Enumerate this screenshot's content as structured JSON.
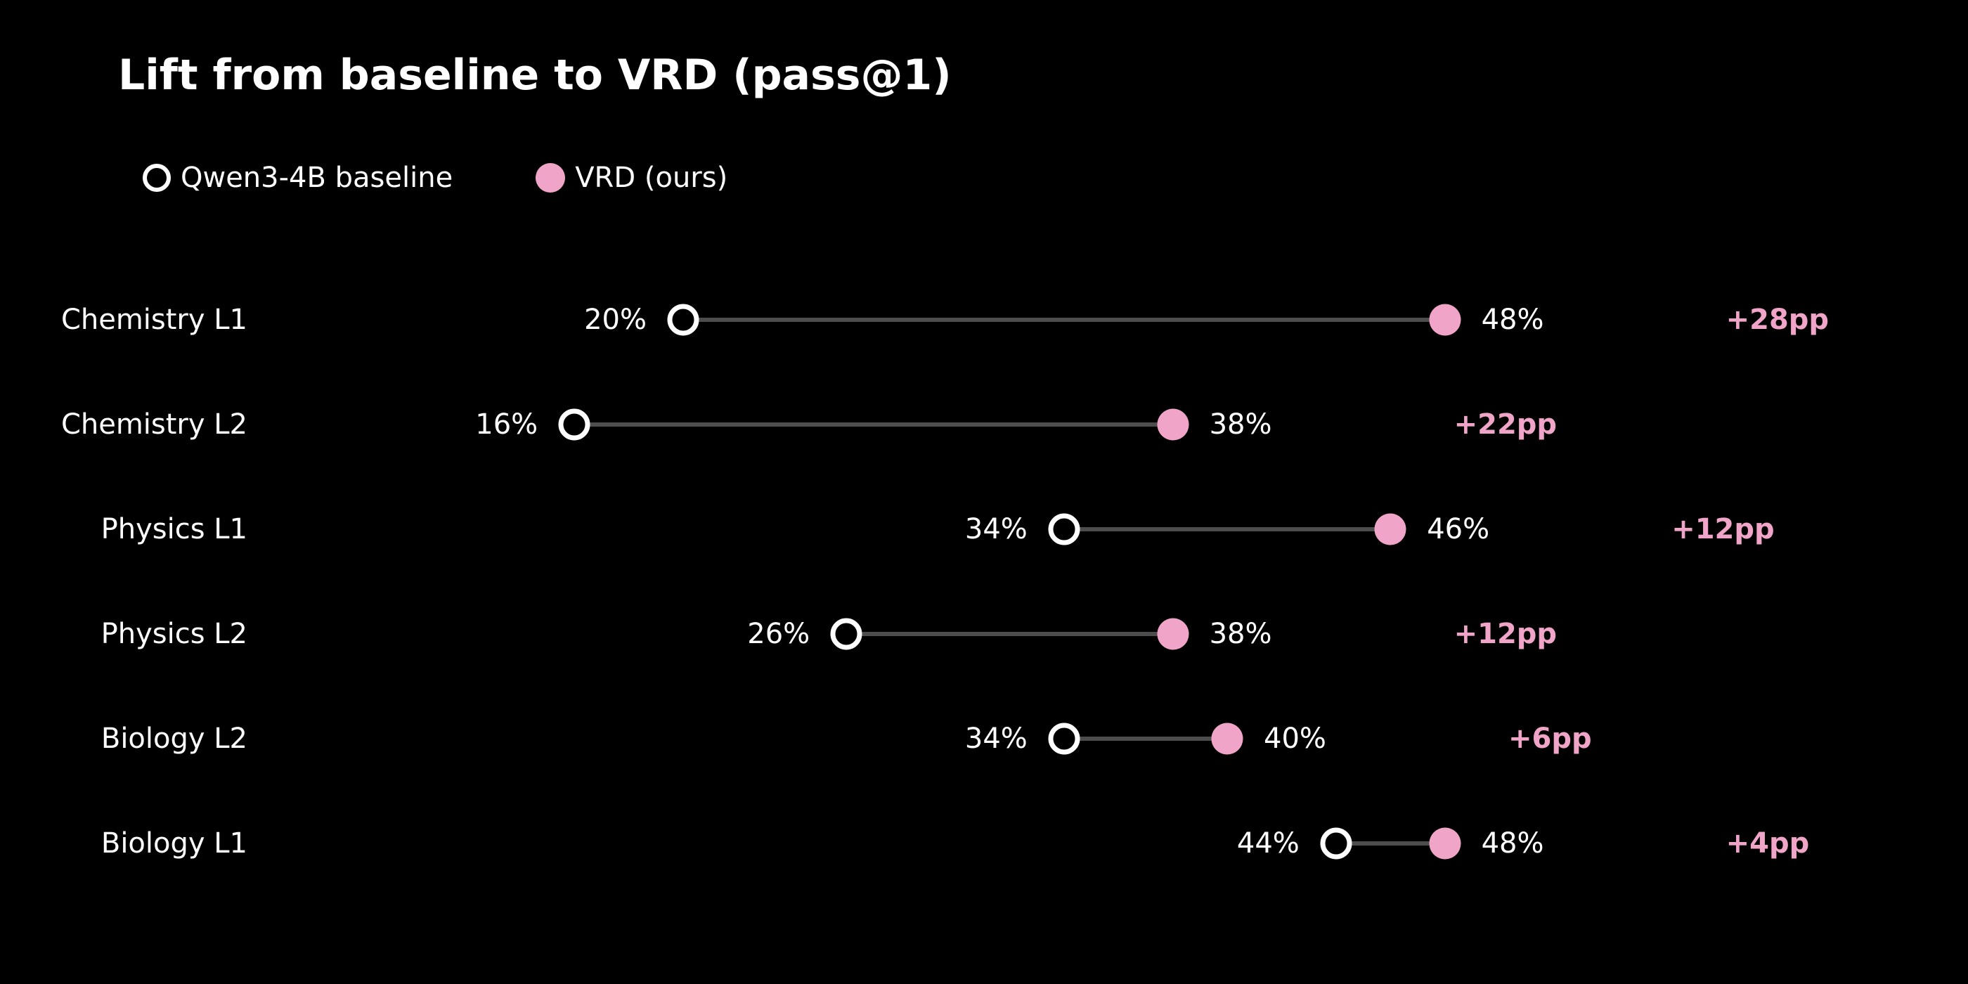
{
  "title": "Lift from baseline to VRD (pass@1)",
  "legend": [
    {
      "label": "Qwen3-4B baseline",
      "marker": "open-circle-icon"
    },
    {
      "label": "VRD (ours)",
      "marker": "filled-circle-icon"
    }
  ],
  "colors": {
    "background": "#000000",
    "text": "#ffffff",
    "pink": "#f0a5c8",
    "connector": "#4d4d4d"
  },
  "chart_data": {
    "type": "dumbbell",
    "title": "Lift from baseline to VRD (pass@1)",
    "categories": [
      "Chemistry L1",
      "Chemistry L2",
      "Physics L1",
      "Physics L2",
      "Biology L2",
      "Biology L1"
    ],
    "series": [
      {
        "name": "Qwen3-4B baseline",
        "values": [
          20,
          16,
          34,
          26,
          34,
          44
        ]
      },
      {
        "name": "VRD (ours)",
        "values": [
          48,
          38,
          46,
          38,
          40,
          48
        ]
      }
    ],
    "rows": [
      {
        "category": "Chemistry L1",
        "baseline": 20,
        "baseline_label": "20%",
        "vrd": 48,
        "vrd_label": "48%",
        "lift": 28,
        "lift_label": "+28pp"
      },
      {
        "category": "Chemistry L2",
        "baseline": 16,
        "baseline_label": "16%",
        "vrd": 38,
        "vrd_label": "38%",
        "lift": 22,
        "lift_label": "+22pp"
      },
      {
        "category": "Physics L1",
        "baseline": 34,
        "baseline_label": "34%",
        "vrd": 46,
        "vrd_label": "46%",
        "lift": 12,
        "lift_label": "+12pp"
      },
      {
        "category": "Physics L2",
        "baseline": 26,
        "baseline_label": "26%",
        "vrd": 38,
        "vrd_label": "38%",
        "lift": 12,
        "lift_label": "+12pp"
      },
      {
        "category": "Biology L2",
        "baseline": 34,
        "baseline_label": "34%",
        "vrd": 40,
        "vrd_label": "40%",
        "lift": 6,
        "lift_label": "+6pp"
      },
      {
        "category": "Biology L1",
        "baseline": 44,
        "baseline_label": "44%",
        "vrd": 48,
        "vrd_label": "48%",
        "lift": 4,
        "lift_label": "+4pp"
      }
    ],
    "value_suffix": "%",
    "lift_suffix": "pp",
    "xlabel": "",
    "ylabel": "",
    "grid": false,
    "axis_visible": false,
    "legend_position": "top-left"
  }
}
